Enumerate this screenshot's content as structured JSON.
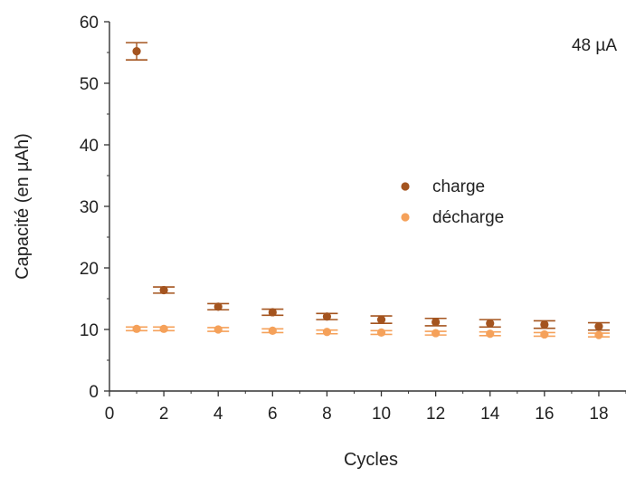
{
  "chart_data": {
    "type": "scatter",
    "title": "",
    "xlabel": "Cycles",
    "ylabel": "Capacité (en µAh)",
    "annotation": "48 µA",
    "xlim": [
      0,
      19
    ],
    "ylim": [
      0,
      60
    ],
    "xticks": [
      0,
      2,
      4,
      6,
      8,
      10,
      12,
      14,
      16,
      18
    ],
    "yticks": [
      0,
      10,
      20,
      30,
      40,
      50,
      60
    ],
    "legend_position": "center-right",
    "grid": false,
    "series": [
      {
        "name": "charge",
        "color": "#a4541f",
        "points": [
          {
            "x": 1,
            "y": 55.2,
            "err": 1.4
          },
          {
            "x": 2,
            "y": 16.4,
            "err": 0.5
          },
          {
            "x": 4,
            "y": 13.7,
            "err": 0.5
          },
          {
            "x": 6,
            "y": 12.8,
            "err": 0.5
          },
          {
            "x": 8,
            "y": 12.1,
            "err": 0.5
          },
          {
            "x": 10,
            "y": 11.6,
            "err": 0.6
          },
          {
            "x": 12,
            "y": 11.2,
            "err": 0.6
          },
          {
            "x": 14,
            "y": 11.0,
            "err": 0.6
          },
          {
            "x": 16,
            "y": 10.8,
            "err": 0.6
          },
          {
            "x": 18,
            "y": 10.5,
            "err": 0.6
          }
        ]
      },
      {
        "name": "décharge",
        "color": "#f5a15a",
        "points": [
          {
            "x": 1,
            "y": 10.1,
            "err": 0.3
          },
          {
            "x": 2,
            "y": 10.1,
            "err": 0.3
          },
          {
            "x": 4,
            "y": 10.0,
            "err": 0.3
          },
          {
            "x": 6,
            "y": 9.8,
            "err": 0.3
          },
          {
            "x": 8,
            "y": 9.6,
            "err": 0.3
          },
          {
            "x": 10,
            "y": 9.5,
            "err": 0.3
          },
          {
            "x": 12,
            "y": 9.4,
            "err": 0.3
          },
          {
            "x": 14,
            "y": 9.3,
            "err": 0.3
          },
          {
            "x": 16,
            "y": 9.2,
            "err": 0.3
          },
          {
            "x": 18,
            "y": 9.1,
            "err": 0.3
          }
        ]
      }
    ]
  }
}
